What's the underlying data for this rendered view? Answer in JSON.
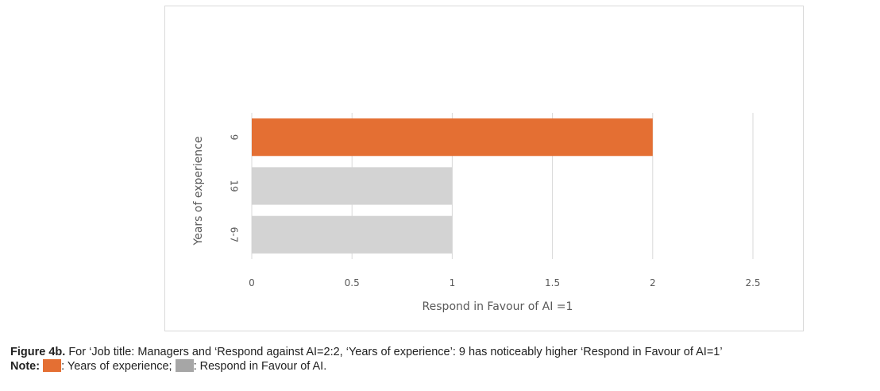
{
  "chart_data": {
    "type": "bar",
    "orientation": "horizontal",
    "categories": [
      "9",
      "19",
      "6-7"
    ],
    "values": [
      2,
      1,
      1
    ],
    "bar_colors": [
      "#e46f33",
      "#d3d3d3",
      "#d3d3d3"
    ],
    "xlabel": "Respond in Favour of AI =1",
    "ylabel": "Years of experience",
    "xlim": [
      0,
      2.5
    ],
    "x_ticks": [
      "0",
      "0.5",
      "1",
      "1.5",
      "2",
      "2.5"
    ],
    "grid": "vertical"
  },
  "caption": {
    "label": "Figure 4b.",
    "text": " For ‘Job title: Managers and ‘Respond against AI=2:2, ‘Years of experience’: 9 has noticeably higher ‘Respond in Favour of AI=1’",
    "note_label": "Note:",
    "legend_items": [
      {
        "color": "#e46f33",
        "text": ": Years of experience;"
      },
      {
        "color": "#a6a6a6",
        "text": ": Respond in Favour of AI."
      }
    ]
  }
}
